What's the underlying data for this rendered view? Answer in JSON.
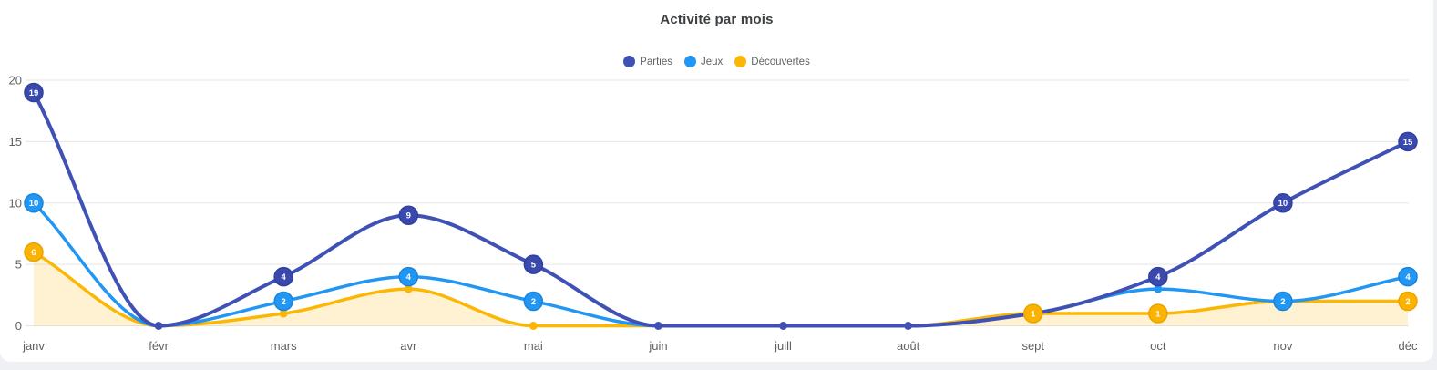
{
  "title_bar": {
    "title": "Activité par mois"
  },
  "colors": {
    "page_bg": "#eef0f3",
    "card_bg": "#ffffff",
    "grid": "#e5e5e5",
    "axis_text": "#616161",
    "title_text": "#3c4043",
    "legend_text": "#5f6368",
    "bubble_text": "#ffffff"
  },
  "chart_data": {
    "type": "line",
    "title": "Activité par mois",
    "categories": [
      "janv",
      "févr",
      "mars",
      "avr",
      "mai",
      "juin",
      "juill",
      "août",
      "sept",
      "oct",
      "nov",
      "déc"
    ],
    "xlabel": "",
    "ylabel": "",
    "ylim": [
      0,
      20
    ],
    "yticks": [
      0,
      5,
      10,
      15,
      20
    ],
    "grid": true,
    "legend_position": "top-center",
    "series": [
      {
        "name": "Parties",
        "color": "#3f51b5",
        "bubble_fill": "#3a49ae",
        "bubble_stroke": "#30409c",
        "line_width": 4,
        "fill_area": false,
        "values": [
          19,
          0,
          4,
          9,
          5,
          0,
          0,
          0,
          1,
          4,
          10,
          15
        ],
        "markers": [
          "bubble",
          "dot",
          "bubble",
          "bubble",
          "bubble",
          "dot",
          "dot",
          "dot",
          "none",
          "bubble",
          "bubble",
          "bubble"
        ]
      },
      {
        "name": "Jeux",
        "color": "#2196f3",
        "bubble_fill": "#2196f3",
        "bubble_stroke": "#1a84da",
        "line_width": 3.5,
        "fill_area": false,
        "values": [
          10,
          0,
          2,
          4,
          2,
          0,
          0,
          0,
          1,
          3,
          2,
          4
        ],
        "markers": [
          "bubble",
          "none",
          "bubble",
          "bubble",
          "bubble",
          "none",
          "none",
          "none",
          "none",
          "dot",
          "bubble",
          "bubble"
        ]
      },
      {
        "name": "Découvertes",
        "color": "#fcb705",
        "bubble_fill": "#fcb200",
        "bubble_stroke": "#e9a400",
        "line_width": 3.5,
        "fill_area": true,
        "fill_color": "#fcb705",
        "fill_opacity": 0.18,
        "values": [
          6,
          0,
          1,
          3,
          0,
          0,
          0,
          0,
          1,
          1,
          2,
          2
        ],
        "markers": [
          "bubble",
          "none",
          "dot",
          "dot",
          "dot",
          "none",
          "none",
          "none",
          "bubble",
          "bubble",
          "none",
          "bubble"
        ]
      }
    ]
  }
}
